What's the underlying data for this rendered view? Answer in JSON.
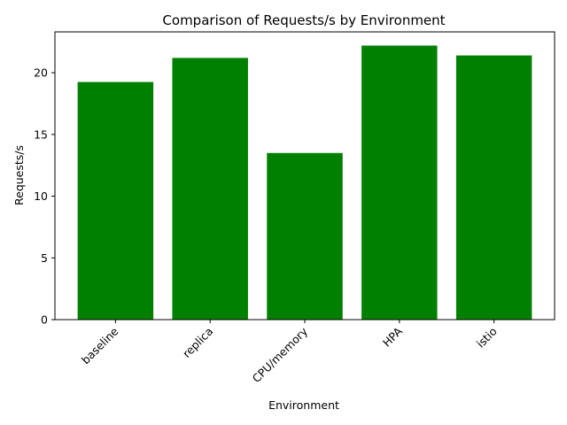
{
  "chart_data": {
    "type": "bar",
    "title": "Comparison of Requests/s by Environment",
    "xlabel": "Environment",
    "ylabel": "Requests/s",
    "categories": [
      "baseline",
      "replica",
      "CPU/memory",
      "HPA",
      "istio"
    ],
    "values": [
      19.25,
      21.2,
      13.5,
      22.2,
      21.4
    ],
    "yticks": [
      0,
      5,
      10,
      15,
      20
    ],
    "ylim": [
      0,
      23.31
    ],
    "bar_color": "#008000",
    "grid": false,
    "legend": "none"
  }
}
